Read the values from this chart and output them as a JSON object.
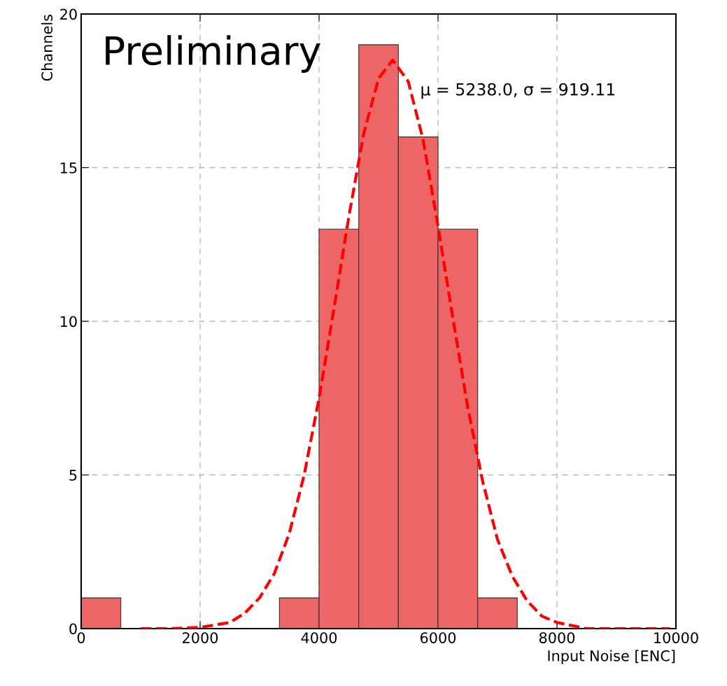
{
  "chart_data": {
    "type": "histogram",
    "xlabel": "Input Noise [ENC]",
    "ylabel": "Channels",
    "annotations": [
      "Preliminary",
      "μ = 5238.0, σ = 919.11"
    ],
    "series": [
      {
        "color": "#ec6666",
        "bins": [
          0,
          667,
          1333,
          2000,
          2667,
          3333,
          4000,
          4667,
          5333,
          6000,
          6667,
          7333,
          8000,
          8667,
          9333,
          10000
        ],
        "values": [
          1,
          0,
          0,
          0,
          0,
          1,
          13,
          19,
          16,
          13,
          1,
          0,
          0,
          0,
          0
        ]
      },
      {
        "type": "line",
        "color": "#ff0000",
        "line_style": "dashed",
        "x": [
          1000,
          1500,
          2000,
          2500,
          2750,
          3000,
          3250,
          3500,
          3750,
          4000,
          4250,
          4500,
          4750,
          5000,
          5238,
          5500,
          5750,
          6000,
          6250,
          6500,
          6750,
          7000,
          7250,
          7500,
          7750,
          8000,
          8500,
          9000,
          9500,
          9900
        ],
        "values": [
          0,
          0,
          0.04,
          0.2,
          0.5,
          1.0,
          1.8,
          3.1,
          5.0,
          7.5,
          10.4,
          13.4,
          16.1,
          17.9,
          18.5,
          17.8,
          15.9,
          13.1,
          10.1,
          7.2,
          4.8,
          2.9,
          1.7,
          0.9,
          0.4,
          0.2,
          0,
          0,
          0,
          0
        ]
      }
    ],
    "xlim": [
      0,
      10000
    ],
    "xticks": [
      0,
      2000,
      4000,
      6000,
      8000,
      10000
    ],
    "ylim": [
      0,
      20
    ],
    "yticks": [
      0,
      5,
      10,
      15,
      20
    ],
    "grid": true
  }
}
